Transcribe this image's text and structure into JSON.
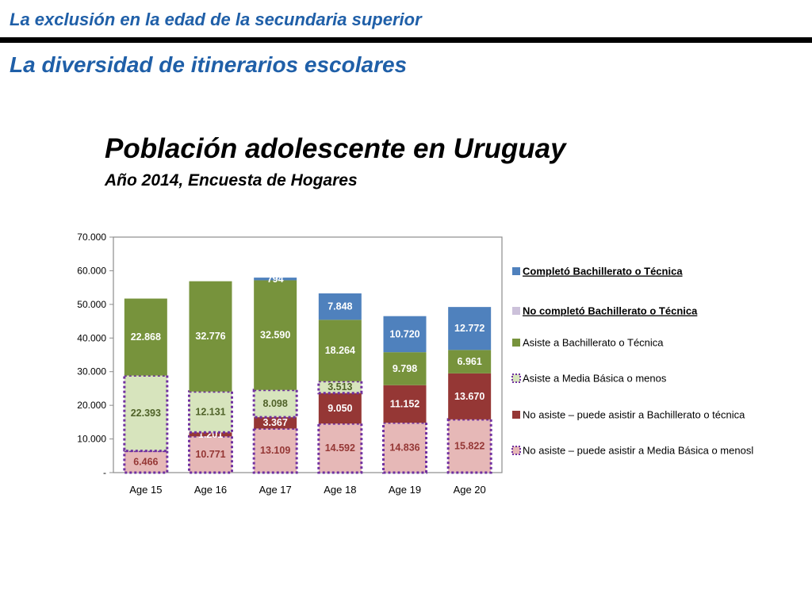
{
  "header": {
    "title": "La exclusión en la edad de la secundaria superior"
  },
  "section": {
    "title": "La diversidad de itinerarios escolares"
  },
  "colors": {
    "accent": "#1f5fa8",
    "rule": "#000000"
  },
  "chart_data": {
    "type": "bar",
    "stacked": true,
    "title": "Población adolescente en Uruguay",
    "subtitle": "Año 2014, Encuesta de Hogares",
    "xlabel": "",
    "ylabel": "",
    "categories": [
      "Age 15",
      "Age 16",
      "Age 17",
      "Age 18",
      "Age 19",
      "Age 20"
    ],
    "ylim": [
      0,
      70000
    ],
    "y_ticks": [
      {
        "value": 0,
        "label": "-"
      },
      {
        "value": 10000,
        "label": "10.000"
      },
      {
        "value": 20000,
        "label": "20.000"
      },
      {
        "value": 30000,
        "label": "30.000"
      },
      {
        "value": 40000,
        "label": "40.000"
      },
      {
        "value": 50000,
        "label": "50.000"
      },
      {
        "value": 60000,
        "label": "60.000"
      },
      {
        "value": 70000,
        "label": "70.000"
      }
    ],
    "legend_position": "right",
    "series": [
      {
        "name": "No asiste – puede asistir  a  Media Básica o menosl",
        "values": [
          6466,
          10771,
          13109,
          14592,
          14836,
          15822
        ],
        "labels": [
          "6.466",
          "10.771",
          "13.109",
          "14.592",
          "14.836",
          "15.822"
        ],
        "fill": "#e6b8b7",
        "text_color": "#953735",
        "dashed": true
      },
      {
        "name": "No asiste – puede asistir a Bachillerato o técnica",
        "values": [
          0,
          1201,
          3367,
          9050,
          11152,
          13670
        ],
        "labels": [
          "",
          "1.201",
          "3.367",
          "9.050",
          "11.152",
          "13.670"
        ],
        "fill": "#953735",
        "text_color": "#ffffff",
        "dashed": false
      },
      {
        "name": "Asiste a Media Básica o menos",
        "values": [
          22393,
          12131,
          8098,
          3513,
          0,
          0
        ],
        "labels": [
          "22.393",
          "12.131",
          "8.098",
          "3.513",
          "",
          ""
        ],
        "fill": "#d7e4bd",
        "text_color": "#4f6228",
        "dashed": true
      },
      {
        "name": "Asiste a Bachillerato o Técnica",
        "values": [
          22868,
          32776,
          32590,
          18264,
          9798,
          6961
        ],
        "labels": [
          "22.868",
          "32.776",
          "32.590",
          "18.264",
          "9.798",
          "6.961"
        ],
        "fill": "#77933c",
        "text_color": "#ffffff",
        "dashed": false
      },
      {
        "name": "No completó Bachillerato o Técnica",
        "values": [
          0,
          0,
          0,
          0,
          0,
          0
        ],
        "labels": [
          "",
          "",
          "",
          "",
          "",
          ""
        ],
        "fill": "#ccc1da",
        "text_color": "#ffffff",
        "dashed": false
      },
      {
        "name": "Completó  Bachillerato o  Técnica",
        "values": [
          0,
          0,
          794,
          7848,
          10720,
          12772
        ],
        "labels": [
          "",
          "",
          "794",
          "7.848",
          "10.720",
          "12.772"
        ],
        "fill": "#4f81bd",
        "text_color": "#ffffff",
        "dashed": false
      }
    ],
    "legend": [
      {
        "label": "Completó  Bachillerato o  Técnica",
        "series": 5,
        "underline": true
      },
      {
        "label": "No completó Bachillerato o Técnica",
        "series": 4,
        "underline": true
      },
      {
        "label": "Asiste a Bachillerato o Técnica",
        "series": 3,
        "underline": false
      },
      {
        "label": "Asiste a Media Básica o menos",
        "series": 2,
        "underline": false
      },
      {
        "label": "No asiste – puede asistir a Bachillerato o técnica",
        "series": 1,
        "underline": false
      },
      {
        "label": "No asiste – puede asistir  a  Media Básica o menosl",
        "series": 0,
        "underline": false
      }
    ]
  }
}
